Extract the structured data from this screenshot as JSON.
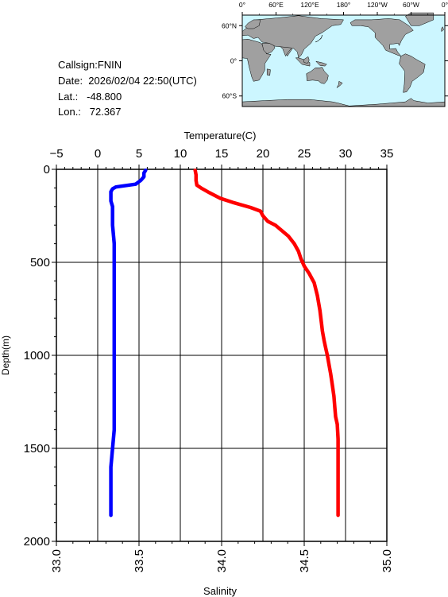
{
  "info": {
    "callsign": "Callsign:FNIN",
    "date": "Date:  2026/02/04 22:50(UTC)",
    "lat": "Lat.:   -48.800",
    "lon": "Lon.:   72.367"
  },
  "map": {
    "lon_ticks": [
      "0°",
      "60°E",
      "120°E",
      "180°",
      "120°W",
      "60°W",
      "0°"
    ],
    "lat_ticks": [
      "60°N",
      "0°",
      "60°S"
    ],
    "ocean_color": "#ccf6ff",
    "land_color": "#a0a0a0",
    "station_marker": "star",
    "station_color": "#ff0000"
  },
  "chart_data": {
    "type": "line",
    "top_axis": {
      "label": "Temperature(C)",
      "range": [
        -5,
        35
      ],
      "ticks": [
        "−5",
        "0",
        "5",
        "10",
        "15",
        "20",
        "25",
        "30",
        "35"
      ]
    },
    "bottom_axis": {
      "label": "Salinity",
      "range": [
        33.0,
        35.0
      ],
      "ticks": [
        "33.0",
        "33.5",
        "34.0",
        "34.5",
        "35.0"
      ]
    },
    "y_axis": {
      "label": "Depth(m)",
      "range": [
        0,
        2000
      ],
      "reversed": true,
      "ticks": [
        "0",
        "500",
        "1000",
        "1500",
        "2000"
      ]
    },
    "grid": true,
    "series": [
      {
        "quantity": "temperature",
        "axis": "top",
        "color": "#ff0000",
        "points": [
          [
            11.8,
            5
          ],
          [
            11.9,
            30
          ],
          [
            11.9,
            60
          ],
          [
            12.0,
            85
          ],
          [
            12.5,
            100
          ],
          [
            13.5,
            125
          ],
          [
            14.8,
            155
          ],
          [
            16.5,
            180
          ],
          [
            18.5,
            205
          ],
          [
            19.7,
            225
          ],
          [
            20.0,
            250
          ],
          [
            20.6,
            280
          ],
          [
            21.5,
            300
          ],
          [
            22.3,
            330
          ],
          [
            23.1,
            360
          ],
          [
            23.8,
            400
          ],
          [
            24.3,
            440
          ],
          [
            24.6,
            480
          ],
          [
            25.0,
            520
          ],
          [
            25.6,
            560
          ],
          [
            26.2,
            610
          ],
          [
            26.6,
            680
          ],
          [
            26.9,
            760
          ],
          [
            27.1,
            830
          ],
          [
            27.2,
            870
          ],
          [
            27.4,
            920
          ],
          [
            27.6,
            960
          ],
          [
            27.8,
            1000
          ],
          [
            28.0,
            1050
          ],
          [
            28.2,
            1100
          ],
          [
            28.4,
            1160
          ],
          [
            28.6,
            1220
          ],
          [
            28.7,
            1280
          ],
          [
            28.8,
            1330
          ],
          [
            29.0,
            1370
          ],
          [
            29.1,
            1450
          ],
          [
            29.1,
            1550
          ],
          [
            29.1,
            1650
          ],
          [
            29.1,
            1750
          ],
          [
            29.1,
            1860
          ]
        ]
      },
      {
        "quantity": "salinity",
        "axis": "bottom",
        "color": "#0000ff",
        "points": [
          [
            33.54,
            5
          ],
          [
            33.53,
            20
          ],
          [
            33.53,
            40
          ],
          [
            33.51,
            60
          ],
          [
            33.48,
            80
          ],
          [
            33.36,
            95
          ],
          [
            33.34,
            105
          ],
          [
            33.33,
            120
          ],
          [
            33.33,
            140
          ],
          [
            33.33,
            170
          ],
          [
            33.34,
            200
          ],
          [
            33.34,
            300
          ],
          [
            33.35,
            400
          ],
          [
            33.35,
            500
          ],
          [
            33.35,
            600
          ],
          [
            33.35,
            700
          ],
          [
            33.35,
            800
          ],
          [
            33.35,
            900
          ],
          [
            33.35,
            1000
          ],
          [
            33.35,
            1100
          ],
          [
            33.35,
            1200
          ],
          [
            33.35,
            1300
          ],
          [
            33.35,
            1400
          ],
          [
            33.34,
            1500
          ],
          [
            33.33,
            1600
          ],
          [
            33.33,
            1700
          ],
          [
            33.33,
            1800
          ],
          [
            33.33,
            1860
          ]
        ]
      }
    ]
  }
}
